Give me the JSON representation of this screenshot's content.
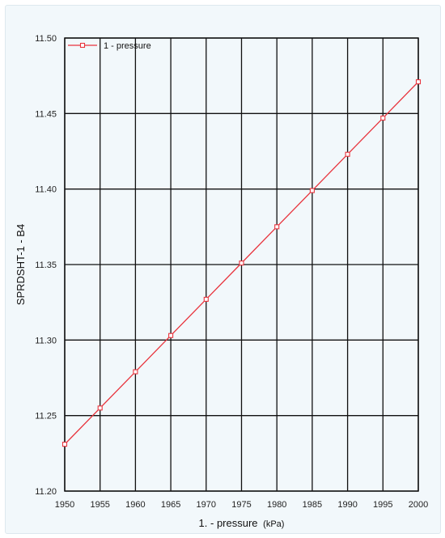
{
  "chart_data": {
    "type": "line",
    "title": "",
    "xlabel": "1. - pressure",
    "xunit": "(kPa)",
    "ylabel": "SPRDSHT-1 - B4",
    "xlim": [
      1950,
      2000
    ],
    "ylim": [
      11.2,
      11.5
    ],
    "x_ticks": [
      "1950",
      "1955",
      "1960",
      "1965",
      "1970",
      "1975",
      "1980",
      "1985",
      "1990",
      "1995",
      "2000"
    ],
    "y_ticks": [
      "11.20",
      "11.25",
      "11.30",
      "11.35",
      "11.40",
      "11.45",
      "11.50"
    ],
    "grid": true,
    "legend_position": "top-left",
    "series": [
      {
        "name": "1 - pressure",
        "color": "#e8333c",
        "marker": "square-open",
        "x": [
          1950,
          1955,
          1960,
          1965,
          1970,
          1975,
          1980,
          1985,
          1990,
          1995,
          2000
        ],
        "y": [
          11.231,
          11.255,
          11.279,
          11.303,
          11.327,
          11.351,
          11.375,
          11.399,
          11.423,
          11.447,
          11.471
        ]
      }
    ]
  }
}
